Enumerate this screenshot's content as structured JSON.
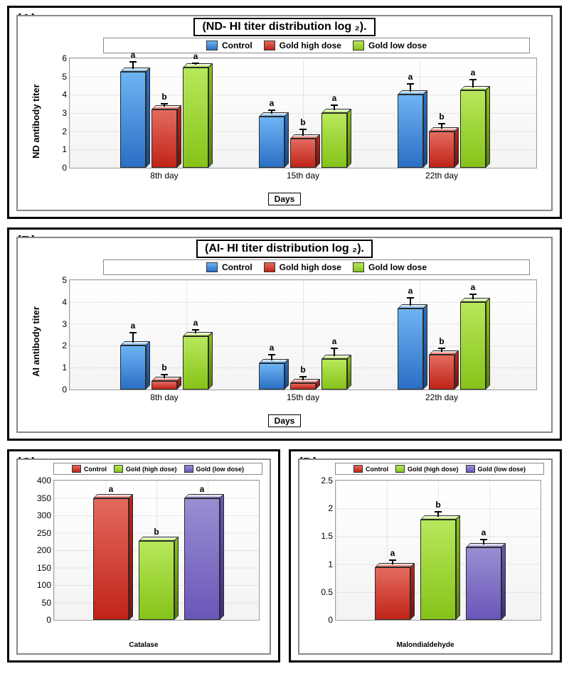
{
  "panelA": {
    "label": "(A)",
    "title": "(ND- HI titer distribution log ₂).",
    "legend": [
      {
        "label": "Control",
        "c1": "#6db4f4",
        "c2": "#2a6fc4",
        "c3": "#174b88"
      },
      {
        "label": "Gold high dose",
        "c1": "#e46a5e",
        "c2": "#c02418",
        "c3": "#7c1109"
      },
      {
        "label": "Gold low dose",
        "c1": "#b7e85b",
        "c2": "#86c319",
        "c3": "#56800c"
      }
    ],
    "ylabel": "ND antibody titer",
    "xlabel": "Days",
    "ymax": 6,
    "ytick_step": 1,
    "categories": [
      "8th day",
      "15th day",
      "22th day"
    ],
    "groups": [
      [
        {
          "v": 5.25,
          "e": 0.45,
          "sig": "a"
        },
        {
          "v": 3.2,
          "e": 0.18,
          "sig": "b"
        },
        {
          "v": 5.5,
          "e": 0.12,
          "sig": "a"
        }
      ],
      [
        {
          "v": 2.8,
          "e": 0.25,
          "sig": "a"
        },
        {
          "v": 1.6,
          "e": 0.4,
          "sig": "b"
        },
        {
          "v": 3.0,
          "e": 0.3,
          "sig": "a"
        }
      ],
      [
        {
          "v": 4.0,
          "e": 0.5,
          "sig": "a"
        },
        {
          "v": 2.0,
          "e": 0.3,
          "sig": "b"
        },
        {
          "v": 4.25,
          "e": 0.45,
          "sig": "a"
        }
      ]
    ]
  },
  "panelB": {
    "label": "(B)",
    "title": "(AI- HI titer distribution log ₂).",
    "legend": [
      {
        "label": "Control",
        "c1": "#6db4f4",
        "c2": "#2a6fc4",
        "c3": "#174b88"
      },
      {
        "label": "Gold high dose",
        "c1": "#e46a5e",
        "c2": "#c02418",
        "c3": "#7c1109"
      },
      {
        "label": "Gold low dose",
        "c1": "#b7e85b",
        "c2": "#86c319",
        "c3": "#56800c"
      }
    ],
    "ylabel": "AI antibody titer",
    "xlabel": "Days",
    "ymax": 5,
    "ytick_step": 1,
    "categories": [
      "8th day",
      "15th day",
      "22th day"
    ],
    "groups": [
      [
        {
          "v": 2.0,
          "e": 0.5,
          "sig": "a"
        },
        {
          "v": 0.4,
          "e": 0.2,
          "sig": "b"
        },
        {
          "v": 2.45,
          "e": 0.18,
          "sig": "a"
        }
      ],
      [
        {
          "v": 1.2,
          "e": 0.3,
          "sig": "a"
        },
        {
          "v": 0.3,
          "e": 0.2,
          "sig": "b"
        },
        {
          "v": 1.4,
          "e": 0.4,
          "sig": "a"
        }
      ],
      [
        {
          "v": 3.7,
          "e": 0.4,
          "sig": "a"
        },
        {
          "v": 1.6,
          "e": 0.2,
          "sig": "b"
        },
        {
          "v": 4.0,
          "e": 0.25,
          "sig": "a"
        }
      ]
    ]
  },
  "panelC": {
    "label": "(C)",
    "legend": [
      {
        "label": "Control",
        "c1": "#e46a5e",
        "c2": "#c02418",
        "c3": "#7c1109"
      },
      {
        "label": "Gold (high dose)",
        "c1": "#b7e85b",
        "c2": "#86c319",
        "c3": "#56800c"
      },
      {
        "label": "Gold (low dose)",
        "c1": "#9a8ed2",
        "c2": "#6a56b8",
        "c3": "#3f2f82"
      }
    ],
    "xlabel": "Catalase",
    "ymax": 400,
    "ytick_step": 50,
    "bars": [
      {
        "v": 350,
        "e": 0,
        "sig": "a"
      },
      {
        "v": 227,
        "e": 0,
        "sig": "b"
      },
      {
        "v": 348,
        "e": 0,
        "sig": "a"
      }
    ]
  },
  "panelD": {
    "label": "(D)",
    "legend": [
      {
        "label": "Control",
        "c1": "#e46a5e",
        "c2": "#c02418",
        "c3": "#7c1109"
      },
      {
        "label": "Gold (high dose)",
        "c1": "#b7e85b",
        "c2": "#86c319",
        "c3": "#56800c"
      },
      {
        "label": "Gold (low dose)",
        "c1": "#9a8ed2",
        "c2": "#6a56b8",
        "c3": "#3f2f82"
      }
    ],
    "xlabel": "Malondialdehyde",
    "ymax": 2.5,
    "ytick_step": 0.5,
    "bars": [
      {
        "v": 0.95,
        "e": 0.08,
        "sig": "a"
      },
      {
        "v": 1.8,
        "e": 0.1,
        "sig": "b"
      },
      {
        "v": 1.3,
        "e": 0.1,
        "sig": "a"
      }
    ]
  }
}
